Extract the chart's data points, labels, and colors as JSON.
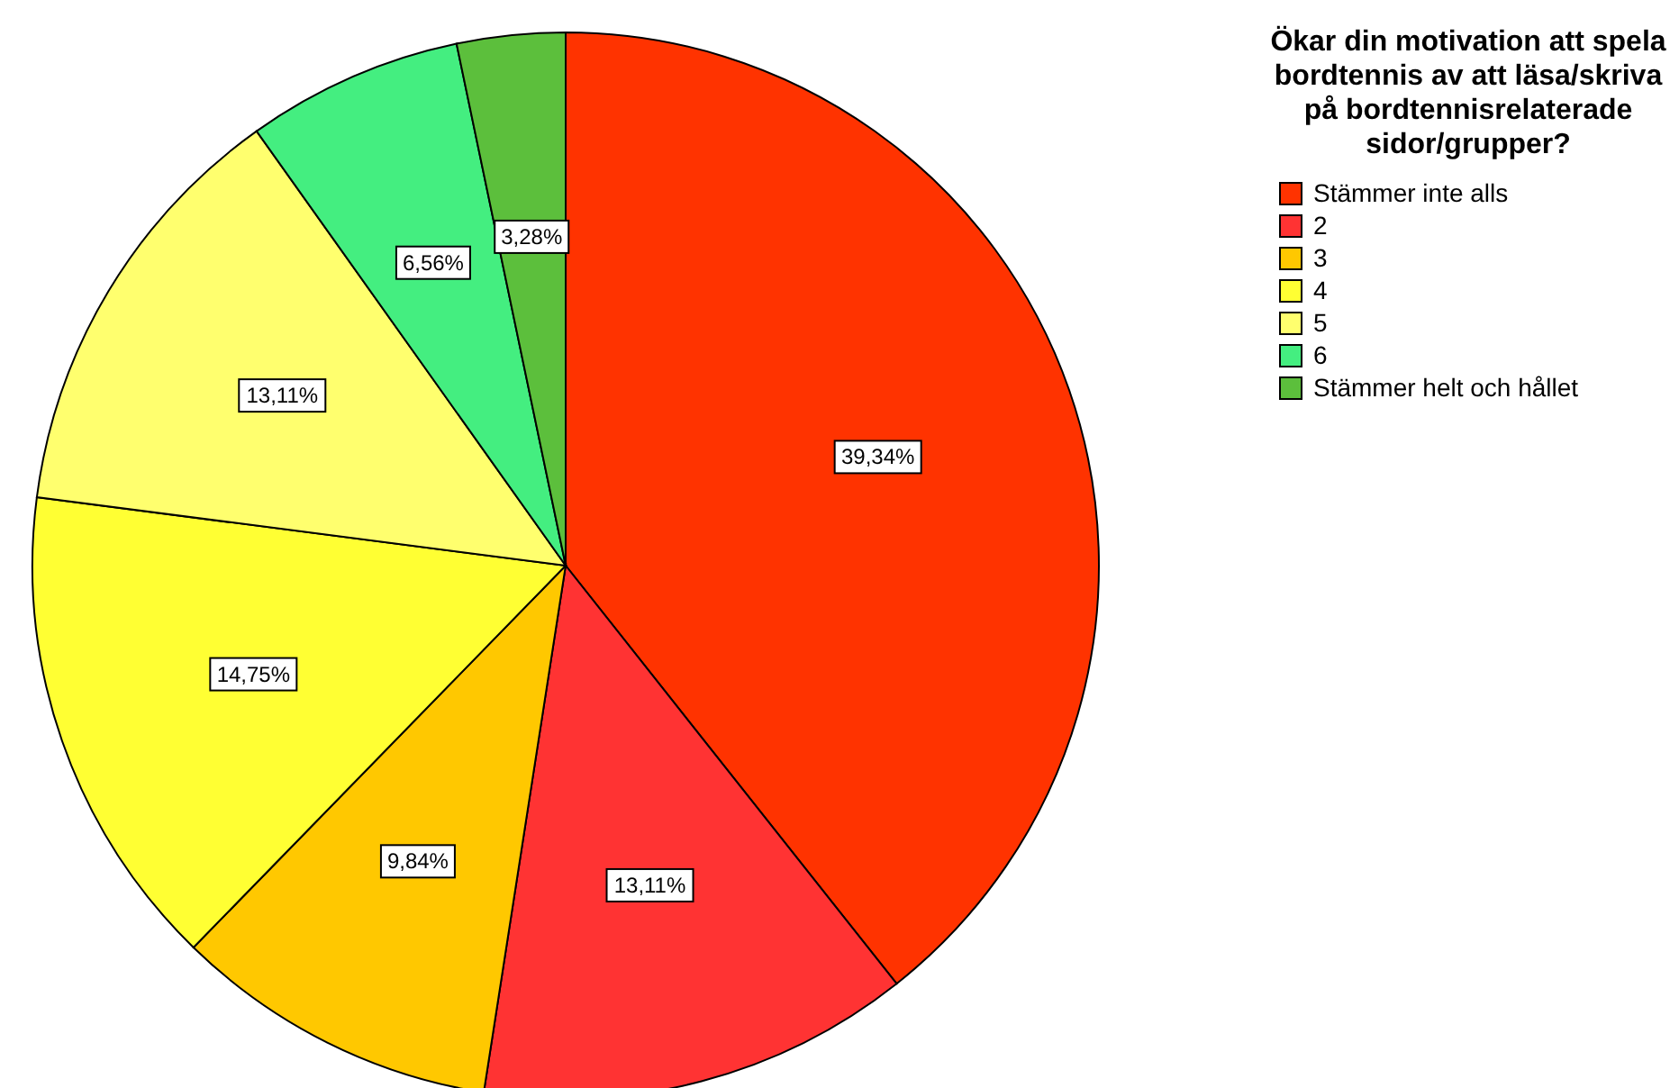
{
  "chart_data": {
    "type": "pie",
    "legend_title": "Ökar din motivation att spela bordtennis av att läsa/skriva på bordtennisrelaterade sidor/grupper?",
    "categories": [
      "Stämmer inte alls",
      "2",
      "3",
      "4",
      "5",
      "6",
      "Stämmer helt och hållet"
    ],
    "values": [
      39.34,
      13.11,
      9.84,
      14.75,
      13.11,
      6.56,
      3.28
    ],
    "value_labels": [
      "39,34%",
      "13,11%",
      "9,84%",
      "14,75%",
      "13,11%",
      "6,56%",
      "3,28%"
    ],
    "colors": [
      "#ff3300",
      "#ff3333",
      "#ffc800",
      "#ffff33",
      "#ffff6e",
      "#44ee80",
      "#5cbf3c"
    ],
    "legend": "top right"
  }
}
